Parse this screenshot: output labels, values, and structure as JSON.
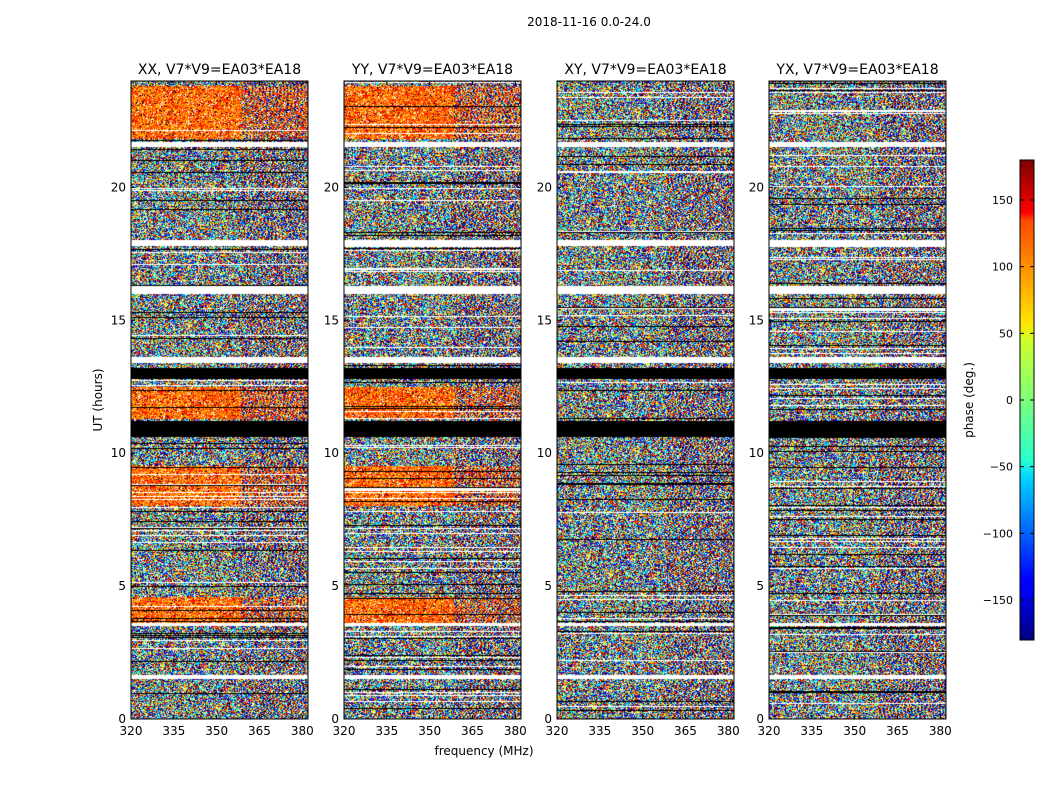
{
  "chart_data": {
    "type": "heatmap",
    "suptitle": "2018-11-16 0.0-24.0",
    "xlabel": "frequency (MHz)",
    "ylabel": "UT (hours)",
    "xlim": [
      320,
      382
    ],
    "ylim": [
      0,
      24
    ],
    "xticks": [
      320,
      335,
      350,
      365,
      380
    ],
    "yticks": [
      0,
      5,
      10,
      15,
      20
    ],
    "panels": [
      {
        "title": "XX, V7*V9=EA03*EA18"
      },
      {
        "title": "YY, V7*V9=EA03*EA18"
      },
      {
        "title": "XY, V7*V9=EA03*EA18"
      },
      {
        "title": "YX, V7*V9=EA03*EA18"
      }
    ],
    "colorbar": {
      "label": "phase (deg.)",
      "colormap": "jet",
      "range": [
        -180,
        180
      ],
      "ticks": [
        150,
        100,
        50,
        0,
        -50,
        -100,
        -150
      ]
    },
    "masked_regions": [
      {
        "type": "black",
        "ut_start": 10.6,
        "ut_end": 11.2
      },
      {
        "type": "black",
        "ut_start": 12.8,
        "ut_end": 13.2
      },
      {
        "type": "white",
        "ut_start": 1.5,
        "ut_end": 1.65
      },
      {
        "type": "white",
        "ut_start": 3.5,
        "ut_end": 3.6
      },
      {
        "type": "white",
        "ut_start": 13.4,
        "ut_end": 13.6
      },
      {
        "type": "white",
        "ut_start": 16.0,
        "ut_end": 16.3
      },
      {
        "type": "white",
        "ut_start": 17.8,
        "ut_end": 18.0
      },
      {
        "type": "white",
        "ut_start": 21.5,
        "ut_end": 21.7
      }
    ]
  }
}
